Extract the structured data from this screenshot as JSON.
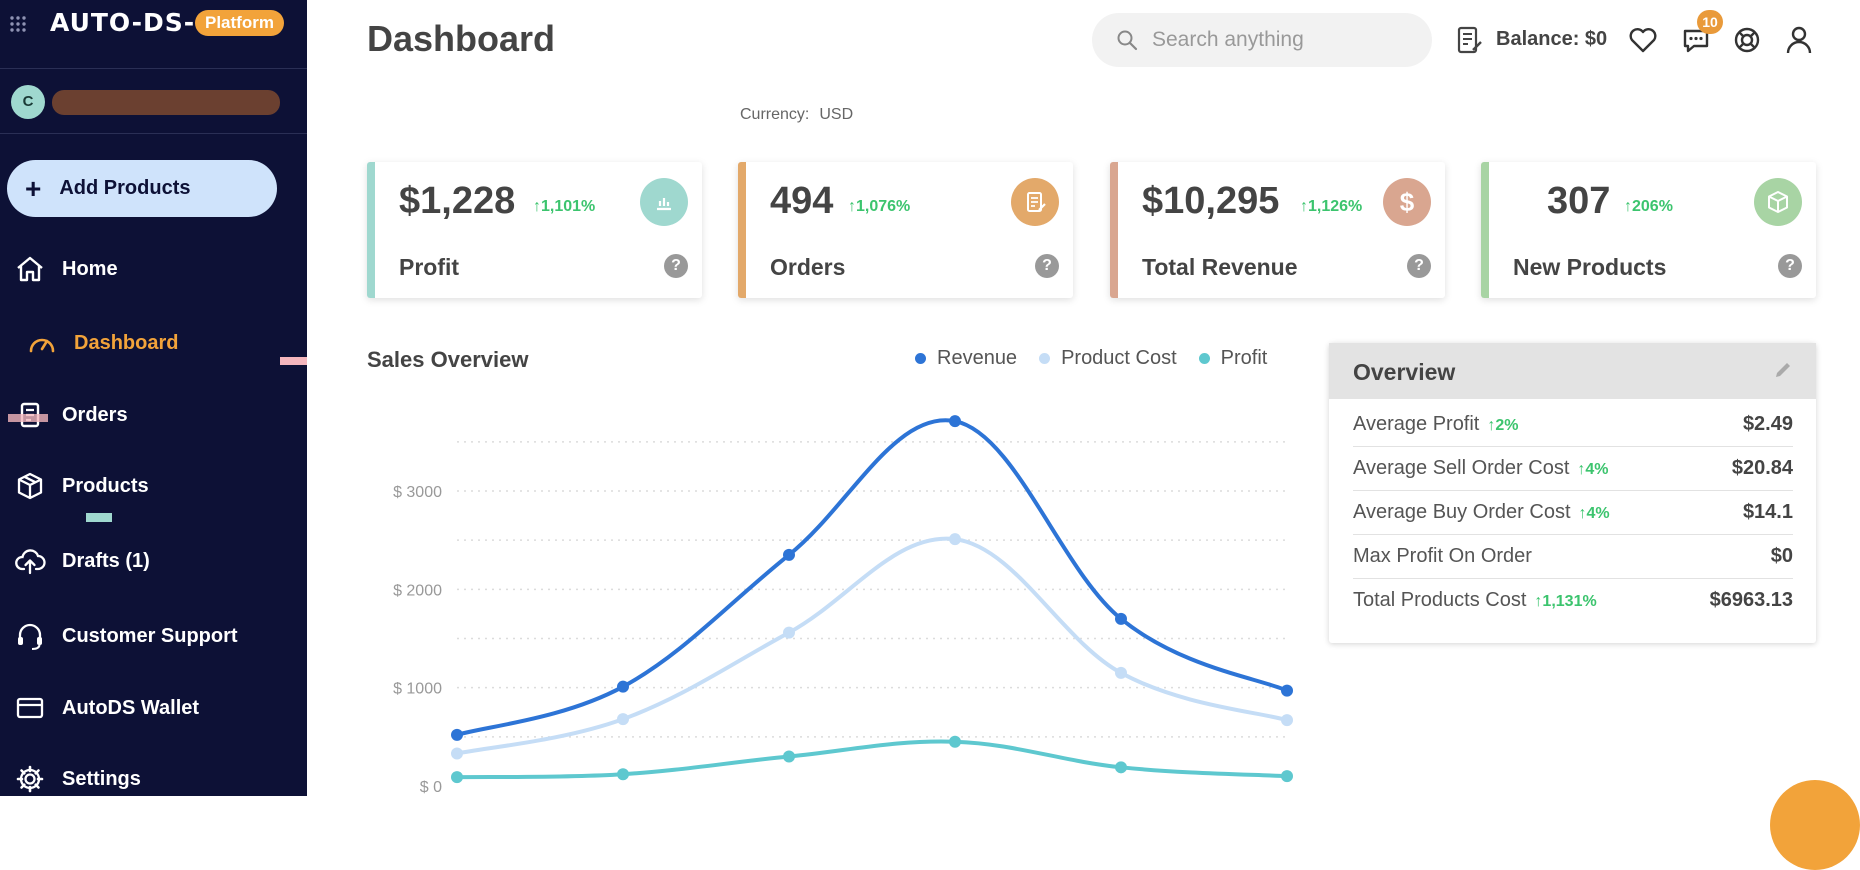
{
  "brand": {
    "logo": "AUTO-DS-",
    "badge": "Platform"
  },
  "account": {
    "initial": "C"
  },
  "sidebar": {
    "add_products": "Add Products",
    "items": [
      {
        "label": "Home",
        "icon": "home-icon"
      },
      {
        "label": "Dashboard",
        "icon": "gauge-icon",
        "active": true
      },
      {
        "label": "Orders",
        "icon": "orders-icon"
      },
      {
        "label": "Products",
        "icon": "box-icon"
      },
      {
        "label": "Drafts (1)",
        "icon": "cloud-upload-icon"
      },
      {
        "label": "Customer Support",
        "icon": "headset-icon"
      },
      {
        "label": "AutoDS Wallet",
        "icon": "wallet-icon"
      },
      {
        "label": "Settings",
        "icon": "gear-icon"
      }
    ]
  },
  "header": {
    "title": "Dashboard",
    "search_placeholder": "Search anything",
    "balance": "Balance: $0",
    "notifications": "10"
  },
  "currency": {
    "label": "Currency:",
    "value": "USD"
  },
  "stats": [
    {
      "value": "$1,228",
      "change": "↑1,101%",
      "label": "Profit",
      "color": "#9fd8cf",
      "icon": "bar-chart-icon"
    },
    {
      "value": "494",
      "change": "↑1,076%",
      "label": "Orders",
      "color": "#e3a96a",
      "icon": "clipboard-icon"
    },
    {
      "value": "$10,295",
      "change": "↑1,126%",
      "label": "Total Revenue",
      "color": "#d9a690",
      "icon": "dollar-icon"
    },
    {
      "value": "307",
      "change": "↑206%",
      "label": "New Products",
      "color": "#a8d4a4",
      "icon": "package-icon"
    }
  ],
  "sales_overview": {
    "title": "Sales Overview"
  },
  "chart_data": {
    "type": "line",
    "title": "Sales Overview",
    "x": [
      1,
      2,
      3,
      4,
      5,
      6
    ],
    "yticks": [
      "$ 0",
      "$ 1000",
      "$ 2000",
      "$ 3000"
    ],
    "ylim": [
      0,
      3600
    ],
    "grid": true,
    "legend_position": "top-right",
    "series": [
      {
        "name": "Revenue",
        "color": "#2d74d6",
        "values": [
          520,
          1010,
          2350,
          3710,
          1700,
          970
        ]
      },
      {
        "name": "Product Cost",
        "color": "#c5ddf6",
        "values": [
          330,
          680,
          1560,
          2510,
          1150,
          670
        ]
      },
      {
        "name": "Profit",
        "color": "#5ec8cf",
        "values": [
          90,
          120,
          300,
          450,
          190,
          100
        ]
      }
    ]
  },
  "overview": {
    "title": "Overview",
    "rows": [
      {
        "label": "Average Profit",
        "change": "↑2%",
        "value": "$2.49"
      },
      {
        "label": "Average Sell Order Cost",
        "change": "↑4%",
        "value": "$20.84"
      },
      {
        "label": "Average Buy Order Cost",
        "change": "↑4%",
        "value": "$14.1"
      },
      {
        "label": "Max Profit On Order",
        "change": "",
        "value": "$0"
      },
      {
        "label": "Total Products Cost",
        "change": "↑1,131%",
        "value": "$6963.13"
      }
    ]
  }
}
